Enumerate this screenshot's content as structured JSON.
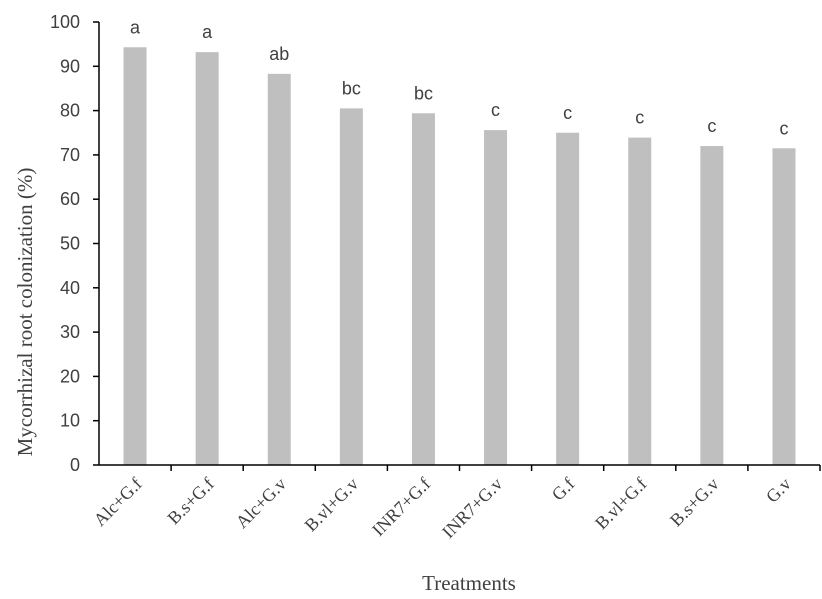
{
  "chart_data": {
    "type": "bar",
    "title": "",
    "xlabel": "Treatments",
    "ylabel": "Mycorrhizal root colonization (%)",
    "ylim": [
      0,
      100
    ],
    "yticks": [
      0,
      10,
      20,
      30,
      40,
      50,
      60,
      70,
      80,
      90,
      100
    ],
    "categories": [
      "Alc+G.f",
      "B.s+G.f",
      "Alc+G.v",
      "B.vl+G.v",
      "INR7+G.f",
      "INR7+G.v",
      "G.f",
      "B.vl+G.f",
      "B.s+G.v",
      "G.v"
    ],
    "values": [
      94.3,
      93.2,
      88.3,
      80.5,
      79.4,
      75.6,
      75.0,
      73.9,
      72.0,
      71.5
    ],
    "significance_letters": [
      "a",
      "a",
      "ab",
      "bc",
      "bc",
      "c",
      "c",
      "c",
      "c",
      "c"
    ],
    "grid": false,
    "legend": "none",
    "bar_color": "#bfbfbf",
    "axis_color": "#000000"
  }
}
